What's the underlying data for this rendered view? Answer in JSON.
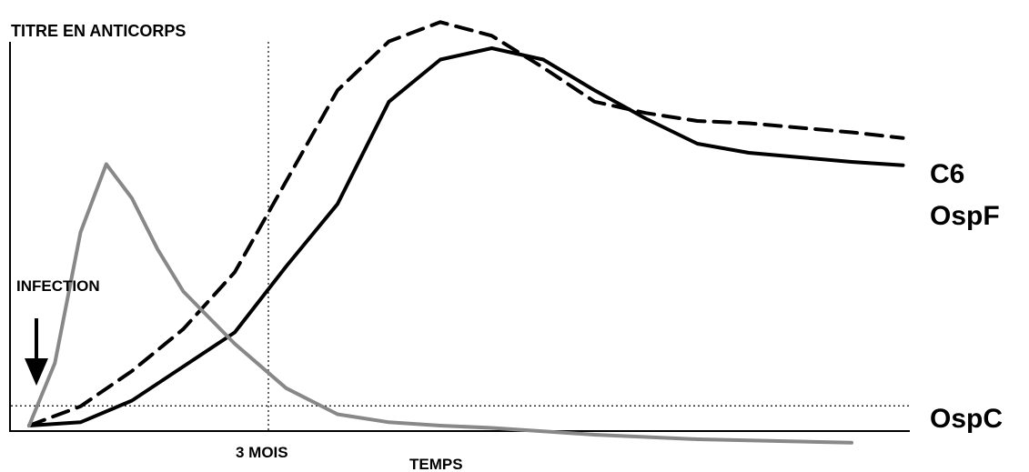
{
  "chart_data": {
    "type": "line",
    "ylabel": "TITRE EN ANTICORPS",
    "xlabel": "TEMPS",
    "x_marker_label": "3 MOIS",
    "event_label": "INFECTION",
    "grid": false,
    "series": [
      {
        "name": "C6",
        "color": "#000000",
        "dashed": true,
        "points": [
          [
            0,
            0
          ],
          [
            1,
            1.7
          ],
          [
            2,
            4.8
          ],
          [
            3,
            8.5
          ],
          [
            4,
            13.5
          ],
          [
            5,
            21.5
          ],
          [
            6,
            29.5
          ],
          [
            7,
            33.8
          ],
          [
            8,
            35.5
          ],
          [
            9,
            34.3
          ],
          [
            10,
            31.5
          ],
          [
            11,
            28.5
          ],
          [
            12,
            27.5
          ],
          [
            13,
            26.8
          ],
          [
            14,
            26.6
          ],
          [
            15,
            26.2
          ],
          [
            16,
            25.8
          ],
          [
            17,
            25.3
          ]
        ]
      },
      {
        "name": "OspF",
        "color": "#000000",
        "dashed": false,
        "points": [
          [
            0,
            0
          ],
          [
            1,
            0.3
          ],
          [
            2,
            2.2
          ],
          [
            3,
            5.2
          ],
          [
            4,
            8.2
          ],
          [
            5,
            14.0
          ],
          [
            6,
            19.5
          ],
          [
            7,
            28.5
          ],
          [
            8,
            32.2
          ],
          [
            9,
            33.2
          ],
          [
            10,
            32.2
          ],
          [
            11,
            29.5
          ],
          [
            12,
            27.0
          ],
          [
            13,
            24.8
          ],
          [
            14,
            24.0
          ],
          [
            15,
            23.6
          ],
          [
            16,
            23.2
          ],
          [
            17,
            22.9
          ]
        ]
      },
      {
        "name": "OspC",
        "color": "#888888",
        "dashed": false,
        "points": [
          [
            0,
            0
          ],
          [
            0.5,
            5.5
          ],
          [
            1,
            17
          ],
          [
            1.5,
            23
          ],
          [
            2,
            20
          ],
          [
            2.5,
            15.5
          ],
          [
            3,
            11.8
          ],
          [
            4,
            7.2
          ],
          [
            5,
            3.3
          ],
          [
            6,
            1.0
          ],
          [
            7,
            0.3
          ],
          [
            8,
            0
          ],
          [
            9,
            -0.2
          ],
          [
            10,
            -0.5
          ],
          [
            11,
            -0.8
          ],
          [
            12,
            -1.0
          ],
          [
            13,
            -1.2
          ],
          [
            14,
            -1.3
          ],
          [
            15,
            -1.4
          ],
          [
            16,
            -1.5
          ]
        ]
      }
    ],
    "threshold_y": 0.3,
    "marker_x": 3.3
  }
}
